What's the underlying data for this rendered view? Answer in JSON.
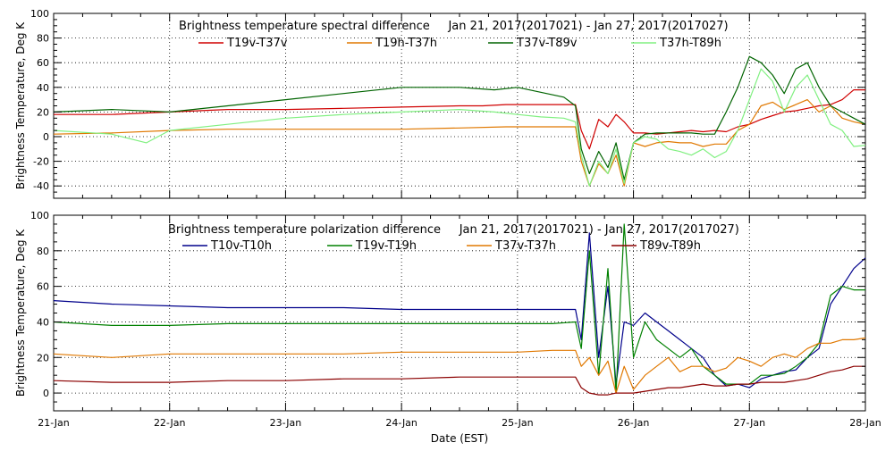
{
  "chart_data": [
    {
      "type": "line",
      "title": "Brightness temperature spectral difference     Jan 21, 2017(2017021) - Jan 27, 2017(2017027)",
      "xlabel": "",
      "ylabel": "Brightness Temperature, Deg K",
      "xlim": [
        0,
        7
      ],
      "ylim": [
        -50,
        100
      ],
      "yticks": [
        -40,
        -20,
        0,
        20,
        40,
        60,
        80,
        100
      ],
      "grid": true,
      "legend_placement": "top",
      "series": [
        {
          "name": "T19v-T37v",
          "color": "#d00000",
          "x": [
            0,
            0.5,
            1,
            1.5,
            2,
            2.5,
            3,
            3.5,
            3.7,
            3.9,
            4.1,
            4.2,
            4.3,
            4.4,
            4.5,
            4.55,
            4.62,
            4.7,
            4.78,
            4.85,
            4.92,
            5.0,
            5.1,
            5.2,
            5.3,
            5.4,
            5.5,
            5.6,
            5.7,
            5.8,
            5.9,
            6.0,
            6.1,
            6.2,
            6.3,
            6.4,
            6.5,
            6.6,
            6.7,
            6.8,
            6.9,
            7.0
          ],
          "y": [
            18,
            18,
            20,
            22,
            22,
            23,
            24,
            25,
            25,
            26,
            26,
            26,
            26,
            26,
            26,
            5,
            -10,
            14,
            8,
            18,
            12,
            3,
            3,
            2,
            3,
            4,
            5,
            4,
            5,
            4,
            8,
            10,
            14,
            17,
            20,
            21,
            23,
            25,
            26,
            30,
            38,
            38
          ]
        },
        {
          "name": "T19h-T37h",
          "color": "#e07800",
          "x": [
            0,
            0.5,
            1,
            1.5,
            2,
            2.5,
            3,
            3.5,
            3.9,
            4.1,
            4.3,
            4.5,
            4.55,
            4.62,
            4.7,
            4.78,
            4.85,
            4.92,
            5.0,
            5.1,
            5.2,
            5.3,
            5.4,
            5.5,
            5.6,
            5.7,
            5.8,
            5.9,
            6.0,
            6.1,
            6.2,
            6.3,
            6.4,
            6.5,
            6.6,
            6.7,
            6.8,
            6.9,
            7.0
          ],
          "y": [
            2,
            3,
            5,
            6,
            6,
            6,
            6,
            7,
            8,
            8,
            8,
            8,
            -20,
            -40,
            -22,
            -30,
            -15,
            -40,
            -5,
            -8,
            -5,
            -4,
            -5,
            -5,
            -8,
            -6,
            -6,
            5,
            10,
            25,
            28,
            22,
            26,
            30,
            20,
            25,
            15,
            12,
            10
          ]
        },
        {
          "name": "T37v-T89v",
          "color": "#006400",
          "x": [
            0,
            0.5,
            1,
            1.5,
            2,
            2.5,
            3,
            3.5,
            3.8,
            4.0,
            4.2,
            4.4,
            4.5,
            4.55,
            4.62,
            4.7,
            4.78,
            4.85,
            4.92,
            5.0,
            5.1,
            5.2,
            5.3,
            5.4,
            5.5,
            5.6,
            5.7,
            5.8,
            5.9,
            6.0,
            6.1,
            6.2,
            6.3,
            6.4,
            6.5,
            6.6,
            6.7,
            6.8,
            6.9,
            7.0
          ],
          "y": [
            20,
            22,
            20,
            25,
            30,
            35,
            40,
            40,
            38,
            40,
            36,
            32,
            25,
            -10,
            -30,
            -12,
            -25,
            -5,
            -35,
            -5,
            2,
            3,
            3,
            3,
            3,
            2,
            2,
            20,
            40,
            65,
            60,
            50,
            35,
            55,
            60,
            40,
            25,
            20,
            15,
            10
          ]
        },
        {
          "name": "T37h-T89h",
          "color": "#80f080",
          "x": [
            0,
            0.5,
            0.8,
            1,
            1.5,
            2,
            2.5,
            3,
            3.5,
            3.8,
            4.0,
            4.2,
            4.4,
            4.5,
            4.55,
            4.62,
            4.7,
            4.78,
            4.85,
            4.92,
            5.0,
            5.1,
            5.2,
            5.3,
            5.4,
            5.5,
            5.6,
            5.7,
            5.8,
            5.9,
            6.0,
            6.1,
            6.2,
            6.3,
            6.4,
            6.5,
            6.6,
            6.7,
            6.8,
            6.9,
            7.0
          ],
          "y": [
            5,
            2,
            -5,
            5,
            10,
            15,
            18,
            20,
            22,
            20,
            18,
            16,
            15,
            12,
            -15,
            -40,
            -20,
            -30,
            -10,
            -38,
            -5,
            0,
            -2,
            -10,
            -12,
            -15,
            -10,
            -17,
            -12,
            5,
            30,
            55,
            45,
            20,
            40,
            50,
            30,
            10,
            5,
            -8,
            -7
          ]
        }
      ]
    },
    {
      "type": "line",
      "title": "Brightness temperature polarization difference     Jan 21, 2017(2017021) - Jan 27, 2017(2017027)",
      "xlabel": "Date (EST)",
      "ylabel": "Brightness Temperature, Deg K",
      "xlim": [
        0,
        7
      ],
      "ylim": [
        -10,
        100
      ],
      "yticks": [
        0,
        20,
        40,
        60,
        80,
        100
      ],
      "xtick_labels": [
        "21-Jan",
        "22-Jan",
        "23-Jan",
        "24-Jan",
        "25-Jan",
        "26-Jan",
        "27-Jan",
        "28-Jan"
      ],
      "grid": true,
      "legend_placement": "top",
      "series": [
        {
          "name": "T10v-T10h",
          "color": "#00008b",
          "x": [
            0,
            0.5,
            1,
            1.5,
            2,
            2.5,
            3,
            3.5,
            4,
            4.3,
            4.5,
            4.55,
            4.62,
            4.7,
            4.78,
            4.85,
            4.92,
            5.0,
            5.1,
            5.2,
            5.3,
            5.4,
            5.5,
            5.6,
            5.7,
            5.8,
            5.9,
            6.0,
            6.1,
            6.2,
            6.3,
            6.4,
            6.5,
            6.6,
            6.7,
            6.8,
            6.9,
            7.0
          ],
          "y": [
            52,
            50,
            49,
            48,
            48,
            48,
            47,
            47,
            47,
            47,
            47,
            30,
            90,
            20,
            60,
            5,
            40,
            38,
            45,
            40,
            35,
            30,
            25,
            20,
            10,
            4,
            5,
            3,
            8,
            10,
            12,
            13,
            20,
            25,
            50,
            60,
            70,
            76
          ]
        },
        {
          "name": "T19v-T19h",
          "color": "#008000",
          "x": [
            0,
            0.5,
            1,
            1.5,
            2,
            2.5,
            3,
            3.5,
            4,
            4.3,
            4.5,
            4.55,
            4.62,
            4.7,
            4.78,
            4.85,
            4.92,
            5.0,
            5.1,
            5.2,
            5.3,
            5.4,
            5.5,
            5.6,
            5.7,
            5.8,
            5.9,
            6.0,
            6.1,
            6.2,
            6.3,
            6.4,
            6.5,
            6.6,
            6.7,
            6.8,
            6.9,
            7.0
          ],
          "y": [
            40,
            38,
            38,
            39,
            39,
            39,
            39,
            39,
            39,
            39,
            40,
            25,
            80,
            10,
            70,
            0,
            95,
            20,
            40,
            30,
            25,
            20,
            25,
            15,
            10,
            5,
            5,
            5,
            10,
            10,
            11,
            15,
            20,
            28,
            55,
            60,
            58,
            58
          ]
        },
        {
          "name": "T37v-T37h",
          "color": "#e07800",
          "x": [
            0,
            0.5,
            1,
            1.5,
            2,
            2.5,
            3,
            3.5,
            4,
            4.3,
            4.5,
            4.55,
            4.62,
            4.7,
            4.78,
            4.85,
            4.92,
            5.0,
            5.1,
            5.2,
            5.3,
            5.4,
            5.5,
            5.6,
            5.7,
            5.8,
            5.9,
            6.0,
            6.1,
            6.2,
            6.3,
            6.4,
            6.5,
            6.6,
            6.7,
            6.8,
            6.9,
            7.0
          ],
          "y": [
            22,
            20,
            22,
            22,
            22,
            22,
            23,
            23,
            23,
            24,
            24,
            15,
            20,
            10,
            18,
            0,
            15,
            2,
            10,
            15,
            20,
            12,
            15,
            15,
            12,
            14,
            20,
            18,
            15,
            20,
            22,
            20,
            25,
            28,
            28,
            30,
            30,
            31
          ]
        },
        {
          "name": "T89v-T89h",
          "color": "#8b0000",
          "x": [
            0,
            0.5,
            1,
            1.5,
            2,
            2.5,
            3,
            3.5,
            4,
            4.3,
            4.5,
            4.55,
            4.62,
            4.7,
            4.78,
            4.85,
            4.92,
            5.0,
            5.1,
            5.2,
            5.3,
            5.4,
            5.5,
            5.6,
            5.7,
            5.8,
            5.9,
            6.0,
            6.1,
            6.2,
            6.3,
            6.4,
            6.5,
            6.6,
            6.7,
            6.8,
            6.9,
            7.0
          ],
          "y": [
            7,
            6,
            6,
            7,
            7,
            8,
            8,
            9,
            9,
            9,
            9,
            3,
            0,
            -1,
            -1,
            0,
            0,
            0,
            1,
            2,
            3,
            3,
            4,
            5,
            4,
            4,
            5,
            5,
            6,
            6,
            6,
            7,
            8,
            10,
            12,
            13,
            15,
            15
          ]
        }
      ]
    }
  ]
}
